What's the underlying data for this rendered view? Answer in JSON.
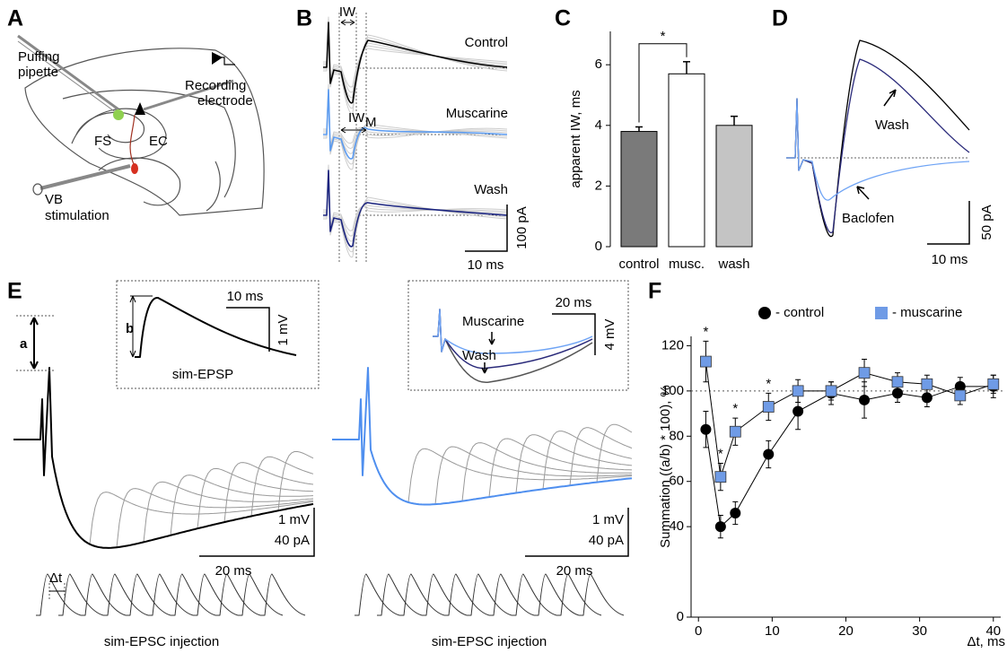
{
  "panels": {
    "letters": [
      "A",
      "B",
      "C",
      "D",
      "E",
      "F"
    ],
    "A": {
      "puffing": [
        "Puffing",
        "pipette"
      ],
      "fs": "FS",
      "ec": "EC",
      "recording": [
        "Recording",
        "electrode"
      ],
      "vb": [
        "VB",
        "stimulation"
      ]
    },
    "B": {
      "iw": "IW",
      "control": "Control",
      "muscarine": "Muscarine",
      "iw_m": "IW",
      "iw_m_sub": "M",
      "wash": "Wash",
      "scale_y": "100 pA",
      "scale_x": "10 ms"
    },
    "D": {
      "wash": "Wash",
      "baclofen": "Baclofen",
      "scale_y": "50 pA",
      "scale_x": "10 ms"
    },
    "E": {
      "a": "a",
      "b": "b",
      "dt": "Δt",
      "inset_left": {
        "scale_x": "10 ms",
        "scale_y": "1 mV",
        "caption": "sim-EPSP"
      },
      "inset_right": {
        "scale_x": "20 ms",
        "scale_y": "4 mV",
        "muscarine": "Muscarine",
        "wash": "Wash"
      },
      "left_scale": [
        "1 mV",
        "40 pA",
        "20 ms"
      ],
      "right_scale": [
        "1 mV",
        "40 pA",
        "20 ms"
      ],
      "captions": [
        "sim-EPSC injection",
        "sim-EPSC injection"
      ]
    }
  },
  "chart_data": [
    {
      "type": "bar",
      "ylabel": "apparent IW, ms",
      "categories": [
        "control",
        "musc.",
        "wash"
      ],
      "values": [
        3.8,
        5.7,
        4.0
      ],
      "errors": [
        0.15,
        0.4,
        0.3
      ],
      "colors": [
        "#7a7a7a",
        "#ffffff",
        "#c4c4c4"
      ],
      "ylim": [
        0,
        7.1
      ],
      "yticks": [
        0,
        2,
        4,
        6
      ],
      "annotation": "*"
    },
    {
      "type": "line",
      "ylabel": "Summation ((a/b) * 100), %",
      "xlabel": "Δt, ms",
      "x": [
        1,
        3,
        5,
        9.5,
        13.5,
        18,
        22.5,
        27,
        31,
        35.5,
        40
      ],
      "series": [
        {
          "name": "- control",
          "color": "#000000",
          "marker": "circle",
          "values": [
            83,
            40,
            46,
            72,
            91,
            99,
            96,
            99,
            97,
            102,
            102
          ],
          "errors": [
            8,
            5,
            5,
            6,
            8,
            5,
            8,
            4,
            4,
            4,
            5
          ]
        },
        {
          "name": "- muscarine",
          "color": "#6f9be6",
          "marker": "square",
          "values": [
            113,
            62,
            82,
            93,
            100,
            100,
            108,
            104,
            103,
            98,
            103
          ],
          "errors": [
            9,
            6,
            6,
            6,
            5,
            4,
            6,
            4,
            4,
            4,
            4
          ],
          "significance": [
            "*",
            "*",
            "*",
            "*",
            null,
            null,
            null,
            null,
            null,
            null,
            null
          ]
        }
      ],
      "xlim": [
        -1,
        41
      ],
      "ylim": [
        0,
        140
      ],
      "xticks": [
        0,
        10,
        20,
        30,
        40
      ],
      "yticks": [
        0,
        40,
        60,
        80,
        100,
        120
      ],
      "hline": 100
    }
  ]
}
